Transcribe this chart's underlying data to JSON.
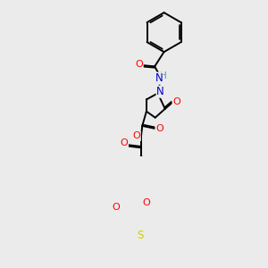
{
  "bg_color": "#ebebeb",
  "atom_colors": {
    "O": "#ff0000",
    "N": "#0000cd",
    "S": "#cccc00",
    "H": "#40a0a0",
    "C": "#000000"
  },
  "bond_color": "#000000",
  "bond_width": 1.4,
  "fig_width": 3.0,
  "fig_height": 3.0,
  "dpi": 100
}
